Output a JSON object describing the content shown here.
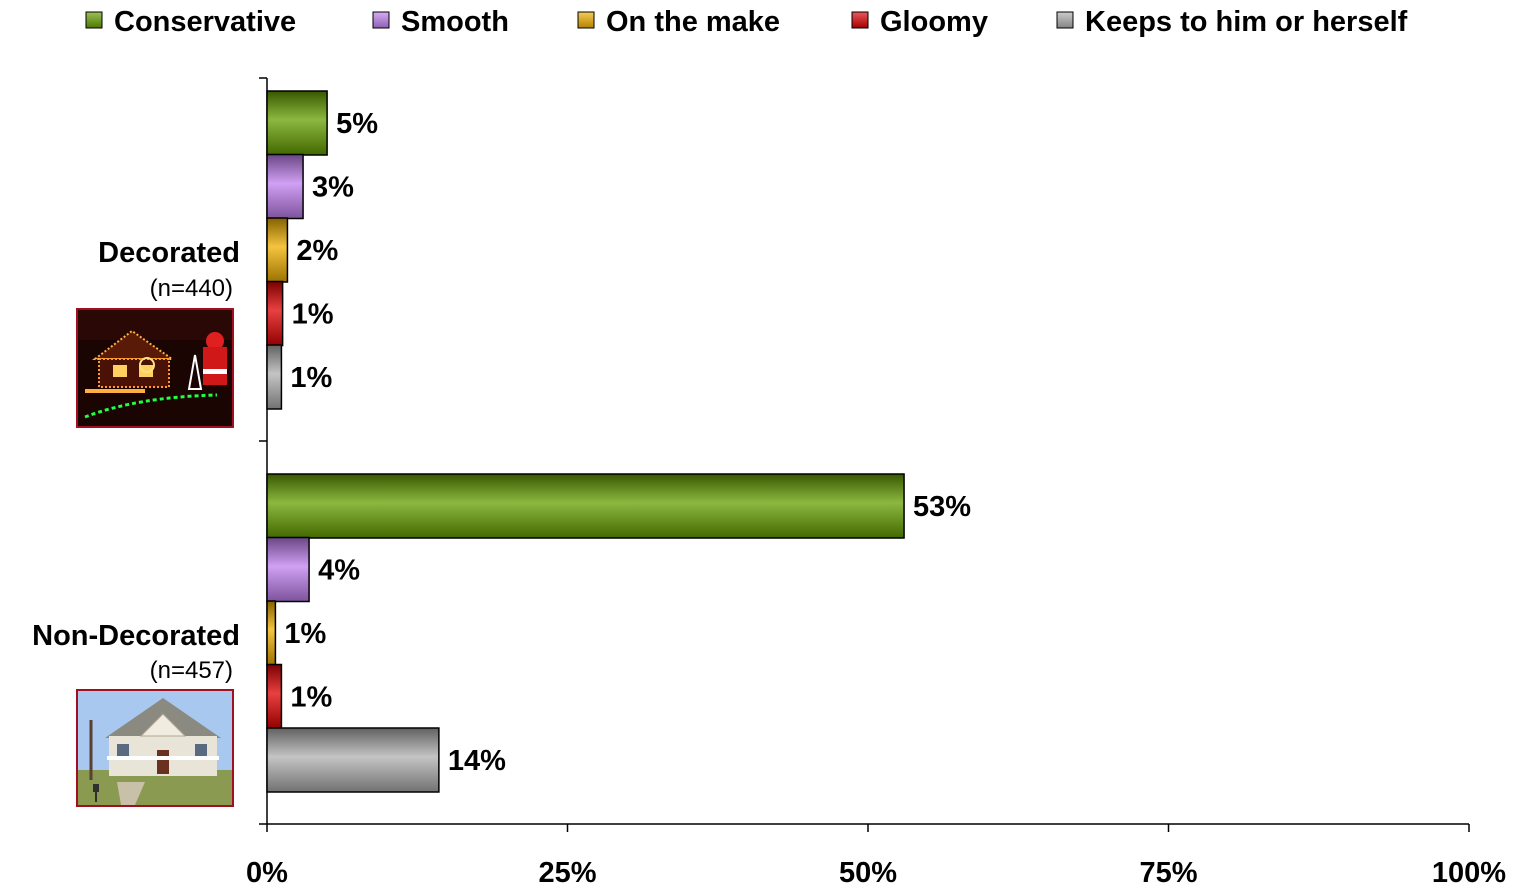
{
  "chart_data": {
    "type": "bar",
    "orientation": "horizontal",
    "categories": [
      {
        "label": "Decorated",
        "sublabel": "(n=440)",
        "photo": "decorated-house-photo"
      },
      {
        "label": "Non-Decorated",
        "sublabel": "(n=457)",
        "photo": "plain-house-photo"
      }
    ],
    "series": [
      {
        "name": "Conservative",
        "color": "#66a000",
        "values": [
          5,
          53
        ],
        "labels": [
          "5%",
          "53%"
        ]
      },
      {
        "name": "Smooth",
        "color": "#c080f0",
        "values": [
          3,
          3.5
        ],
        "labels": [
          "3%",
          "4%"
        ]
      },
      {
        "name": "On the make",
        "color": "#f0b000",
        "values": [
          1.7,
          0.7
        ],
        "labels": [
          "2%",
          "1%"
        ]
      },
      {
        "name": "Gloomy",
        "color": "#e00000",
        "values": [
          1.3,
          1.2
        ],
        "labels": [
          "1%",
          "1%"
        ]
      },
      {
        "name": "Keeps to him or herself",
        "color": "#b0b0b0",
        "values": [
          1.2,
          14.3
        ],
        "labels": [
          "1%",
          "14%"
        ]
      }
    ],
    "x_ticks": [
      "0%",
      "25%",
      "50%",
      "75%",
      "100%"
    ],
    "xlim": [
      0,
      100
    ],
    "legend_position": "top",
    "grid": false
  }
}
